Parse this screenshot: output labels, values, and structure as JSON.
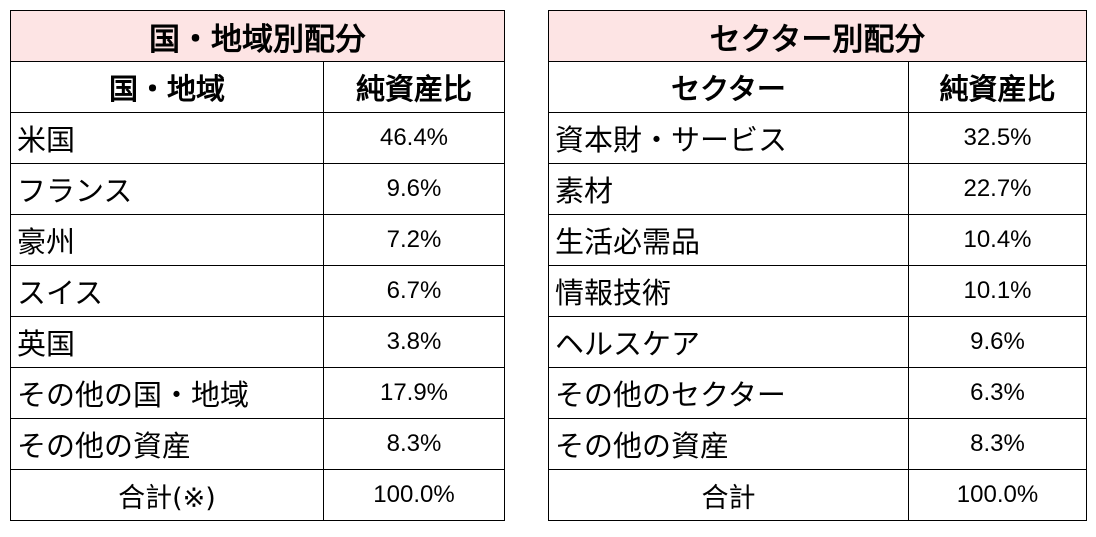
{
  "region_table": {
    "title": "国・地域別配分",
    "col_label": "国・地域",
    "col_value": "純資産比",
    "rows": [
      {
        "label": "米国",
        "value": "46.4%"
      },
      {
        "label": "フランス",
        "value": "9.6%"
      },
      {
        "label": "豪州",
        "value": "7.2%"
      },
      {
        "label": "スイス",
        "value": "6.7%"
      },
      {
        "label": "英国",
        "value": "3.8%"
      },
      {
        "label": "その他の国・地域",
        "value": "17.9%"
      },
      {
        "label": "その他の資産",
        "value": "8.3%"
      }
    ],
    "total_label": "合計(※)",
    "total_value": "100.0%"
  },
  "sector_table": {
    "title": "セクター別配分",
    "col_label": "セクター",
    "col_value": "純資産比",
    "rows": [
      {
        "label": "資本財・サービス",
        "value": "32.5%"
      },
      {
        "label": "素材",
        "value": "22.7%"
      },
      {
        "label": "生活必需品",
        "value": "10.4%"
      },
      {
        "label": "情報技術",
        "value": "10.1%"
      },
      {
        "label": "ヘルスケア",
        "value": "9.6%"
      },
      {
        "label": "その他のセクター",
        "value": "6.3%"
      },
      {
        "label": "その他の資産",
        "value": "8.3%"
      }
    ],
    "total_label": "合計",
    "total_value": "100.0%"
  },
  "colors": {
    "title_background": "#fde4e4",
    "border": "#000000"
  }
}
